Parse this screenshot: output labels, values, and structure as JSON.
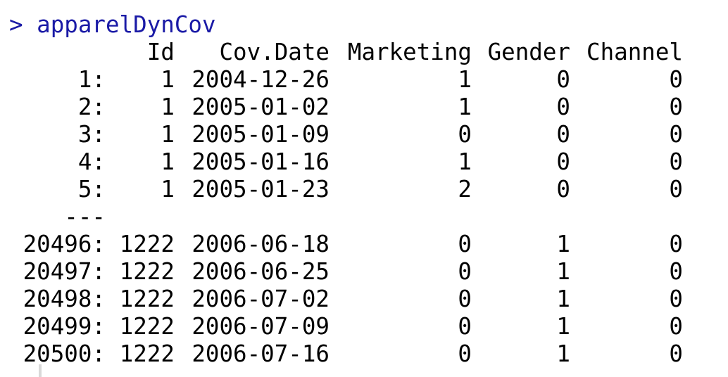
{
  "console": {
    "prompt": ">",
    "command": "apparelDynCov",
    "headers": {
      "id": "Id",
      "date": "Cov.Date",
      "marketing": "Marketing",
      "gender": "Gender",
      "channel": "Channel"
    },
    "top_rows": [
      {
        "idx": "1:",
        "id": "1",
        "date": "2004-12-26",
        "marketing": "1",
        "gender": "0",
        "channel": "0"
      },
      {
        "idx": "2:",
        "id": "1",
        "date": "2005-01-02",
        "marketing": "1",
        "gender": "0",
        "channel": "0"
      },
      {
        "idx": "3:",
        "id": "1",
        "date": "2005-01-09",
        "marketing": "0",
        "gender": "0",
        "channel": "0"
      },
      {
        "idx": "4:",
        "id": "1",
        "date": "2005-01-16",
        "marketing": "1",
        "gender": "0",
        "channel": "0"
      },
      {
        "idx": "5:",
        "id": "1",
        "date": "2005-01-23",
        "marketing": "2",
        "gender": "0",
        "channel": "0"
      }
    ],
    "separator": "---",
    "bottom_rows": [
      {
        "idx": "20496:",
        "id": "1222",
        "date": "2006-06-18",
        "marketing": "0",
        "gender": "1",
        "channel": "0"
      },
      {
        "idx": "20497:",
        "id": "1222",
        "date": "2006-06-25",
        "marketing": "0",
        "gender": "1",
        "channel": "0"
      },
      {
        "idx": "20498:",
        "id": "1222",
        "date": "2006-07-02",
        "marketing": "0",
        "gender": "1",
        "channel": "0"
      },
      {
        "idx": "20499:",
        "id": "1222",
        "date": "2006-07-09",
        "marketing": "0",
        "gender": "1",
        "channel": "0"
      },
      {
        "idx": "20500:",
        "id": "1222",
        "date": "2006-07-16",
        "marketing": "0",
        "gender": "1",
        "channel": "0"
      }
    ]
  }
}
